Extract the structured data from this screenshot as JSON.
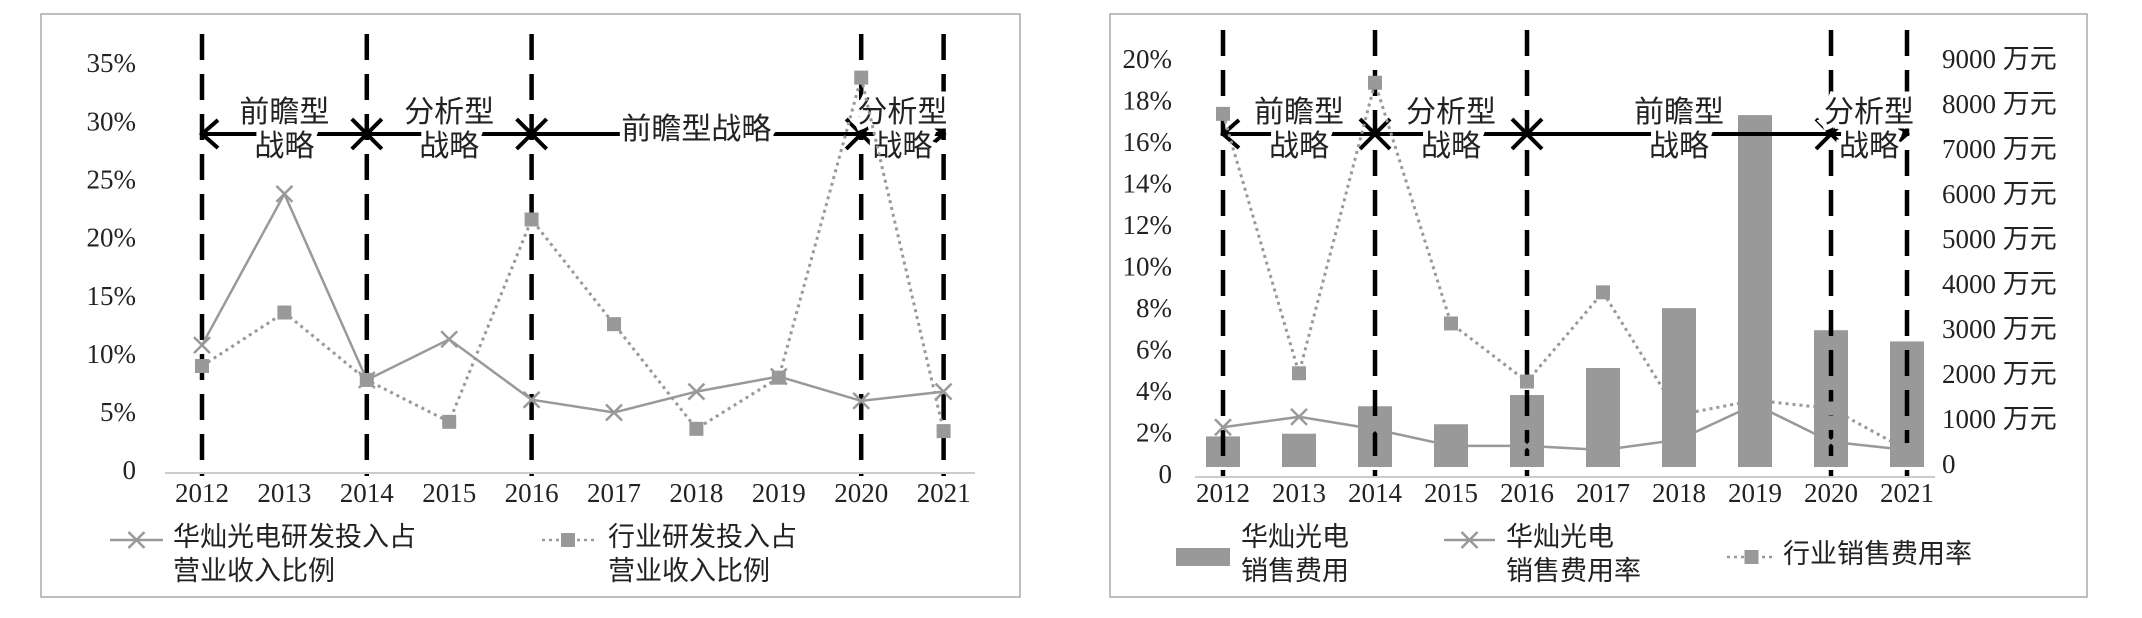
{
  "chart_data": [
    {
      "type": "line",
      "categories": [
        "2012",
        "2013",
        "2014",
        "2015",
        "2016",
        "2017",
        "2018",
        "2019",
        "2020",
        "2021"
      ],
      "ylim": [
        0,
        35
      ],
      "yticks": [
        0,
        {
          "value": 5,
          "label": "5%"
        },
        {
          "value": 10,
          "label": "10%"
        },
        {
          "value": 15,
          "label": "15%"
        },
        {
          "value": 20,
          "label": "20%"
        },
        {
          "value": 25,
          "label": "25%"
        },
        {
          "value": 30,
          "label": "30%"
        },
        {
          "value": 35,
          "label": "35%"
        }
      ],
      "series": [
        {
          "name": "华灿光电研发投入占\n营业收入比例",
          "color": "#999999",
          "marker": "x",
          "dashed": false,
          "values": [
            11,
            24,
            8,
            11.5,
            6.3,
            5.2,
            7,
            8.3,
            6.2,
            7
          ]
        },
        {
          "name": "行业研发投入占\n营业收入比例",
          "color": "#999999",
          "marker": "square",
          "dashed": true,
          "values": [
            9.2,
            13.8,
            8,
            4.4,
            21.8,
            12.8,
            3.8,
            8.2,
            34,
            3.6
          ]
        }
      ],
      "phases": [
        {
          "label": "前瞻型\n战略",
          "start": "2012",
          "end": "2014"
        },
        {
          "label": "分析型\n战略",
          "start": "2014",
          "end": "2016"
        },
        {
          "label": "前瞻型战略",
          "start": "2016",
          "end": "2020"
        },
        {
          "label": "分析型\n战略",
          "start": "2020",
          "end": "2021"
        }
      ]
    },
    {
      "type": "combo",
      "categories": [
        "2012",
        "2013",
        "2014",
        "2015",
        "2016",
        "2017",
        "2018",
        "2019",
        "2020",
        "2021"
      ],
      "ylim": [
        0,
        20
      ],
      "yticks": [
        0,
        {
          "value": 2,
          "label": "2%"
        },
        {
          "value": 4,
          "label": "4%"
        },
        {
          "value": 6,
          "label": "6%"
        },
        {
          "value": 8,
          "label": "8%"
        },
        {
          "value": 10,
          "label": "10%"
        },
        {
          "value": 12,
          "label": "12%"
        },
        {
          "value": 14,
          "label": "14%"
        },
        {
          "value": 16,
          "label": "16%"
        },
        {
          "value": 18,
          "label": "18%"
        },
        {
          "value": 20,
          "label": "20%"
        }
      ],
      "y2lim": [
        0,
        9000
      ],
      "y2ticks": [
        0,
        {
          "value": 1000,
          "label": "1000 万元"
        },
        {
          "value": 2000,
          "label": "2000 万元"
        },
        {
          "value": 3000,
          "label": "3000 万元"
        },
        {
          "value": 4000,
          "label": "4000 万元"
        },
        {
          "value": 5000,
          "label": "5000 万元"
        },
        {
          "value": 6000,
          "label": "6000 万元"
        },
        {
          "value": 7000,
          "label": "7000 万元"
        },
        {
          "value": 8000,
          "label": "8000 万元"
        },
        {
          "value": 9000,
          "label": "9000 万元"
        }
      ],
      "series": [
        {
          "name": "华灿光电\n销售费用",
          "kind": "bar",
          "axis": "y2",
          "color": "#999999",
          "values": [
            680,
            740,
            1350,
            950,
            1600,
            2200,
            3530,
            7820,
            3040,
            2790
          ]
        },
        {
          "name": "华灿光电\n销售费用率",
          "kind": "line",
          "color": "#999999",
          "marker": "x",
          "dashed": false,
          "values": [
            2.4,
            2.9,
            2.3,
            1.5,
            1.5,
            1.3,
            1.8,
            3.5,
            1.7,
            1.3
          ]
        },
        {
          "name": "行业销售费用率",
          "kind": "line",
          "color": "#999999",
          "marker": "square",
          "dashed": true,
          "values": [
            17.5,
            5.0,
            19.0,
            7.4,
            4.6,
            8.9,
            3.0,
            3.7,
            3.3,
            1.3
          ]
        }
      ],
      "phases": [
        {
          "label": "前瞻型\n战略",
          "start": "2012",
          "end": "2014"
        },
        {
          "label": "分析型\n战略",
          "start": "2014",
          "end": "2016"
        },
        {
          "label": "前瞻型\n战略",
          "start": "2016",
          "end": "2020"
        },
        {
          "label": "分析型\n战略",
          "start": "2020",
          "end": "2021"
        }
      ]
    }
  ]
}
